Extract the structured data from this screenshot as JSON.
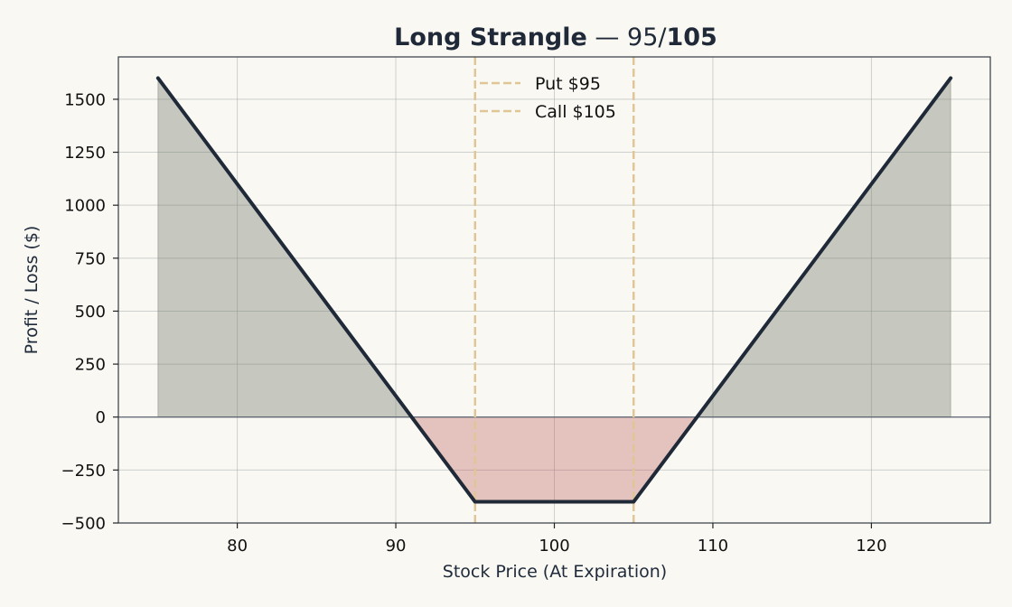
{
  "chart_data": {
    "type": "line",
    "title_main": "Long Strangle",
    "title_sep": " — ",
    "title_low": "95",
    "title_slash": "/",
    "title_high": "105",
    "xlabel": "Stock Price (At Expiration)",
    "ylabel": "Profit / Loss ($)",
    "xlim": [
      72.5,
      127.5
    ],
    "ylim": [
      -500,
      1700
    ],
    "x_ticks": [
      80,
      90,
      100,
      110,
      120
    ],
    "x_tick_labels": [
      "80",
      "90",
      "100",
      "110",
      "120"
    ],
    "y_ticks": [
      -500,
      -250,
      0,
      250,
      500,
      750,
      1000,
      1250,
      1500
    ],
    "y_tick_labels": [
      "−500",
      "−250",
      "0",
      "250",
      "500",
      "750",
      "1000",
      "1250",
      "1500"
    ],
    "grid": true,
    "legend_position": "top-center",
    "series": [
      {
        "x": [
          75,
          95,
          105,
          125
        ],
        "y": [
          1600,
          -400,
          -400,
          1600
        ],
        "color": "#1f2937"
      }
    ],
    "reference_lines": [
      {
        "name": "Put $95",
        "x": 95,
        "color": "#e0c596"
      },
      {
        "name": "Call $105",
        "x": 105,
        "color": "#e0c596"
      }
    ],
    "fill_profit_color": "#6b7563",
    "fill_loss_color": "#b24a4a",
    "background_color": "#f9f8f3"
  }
}
